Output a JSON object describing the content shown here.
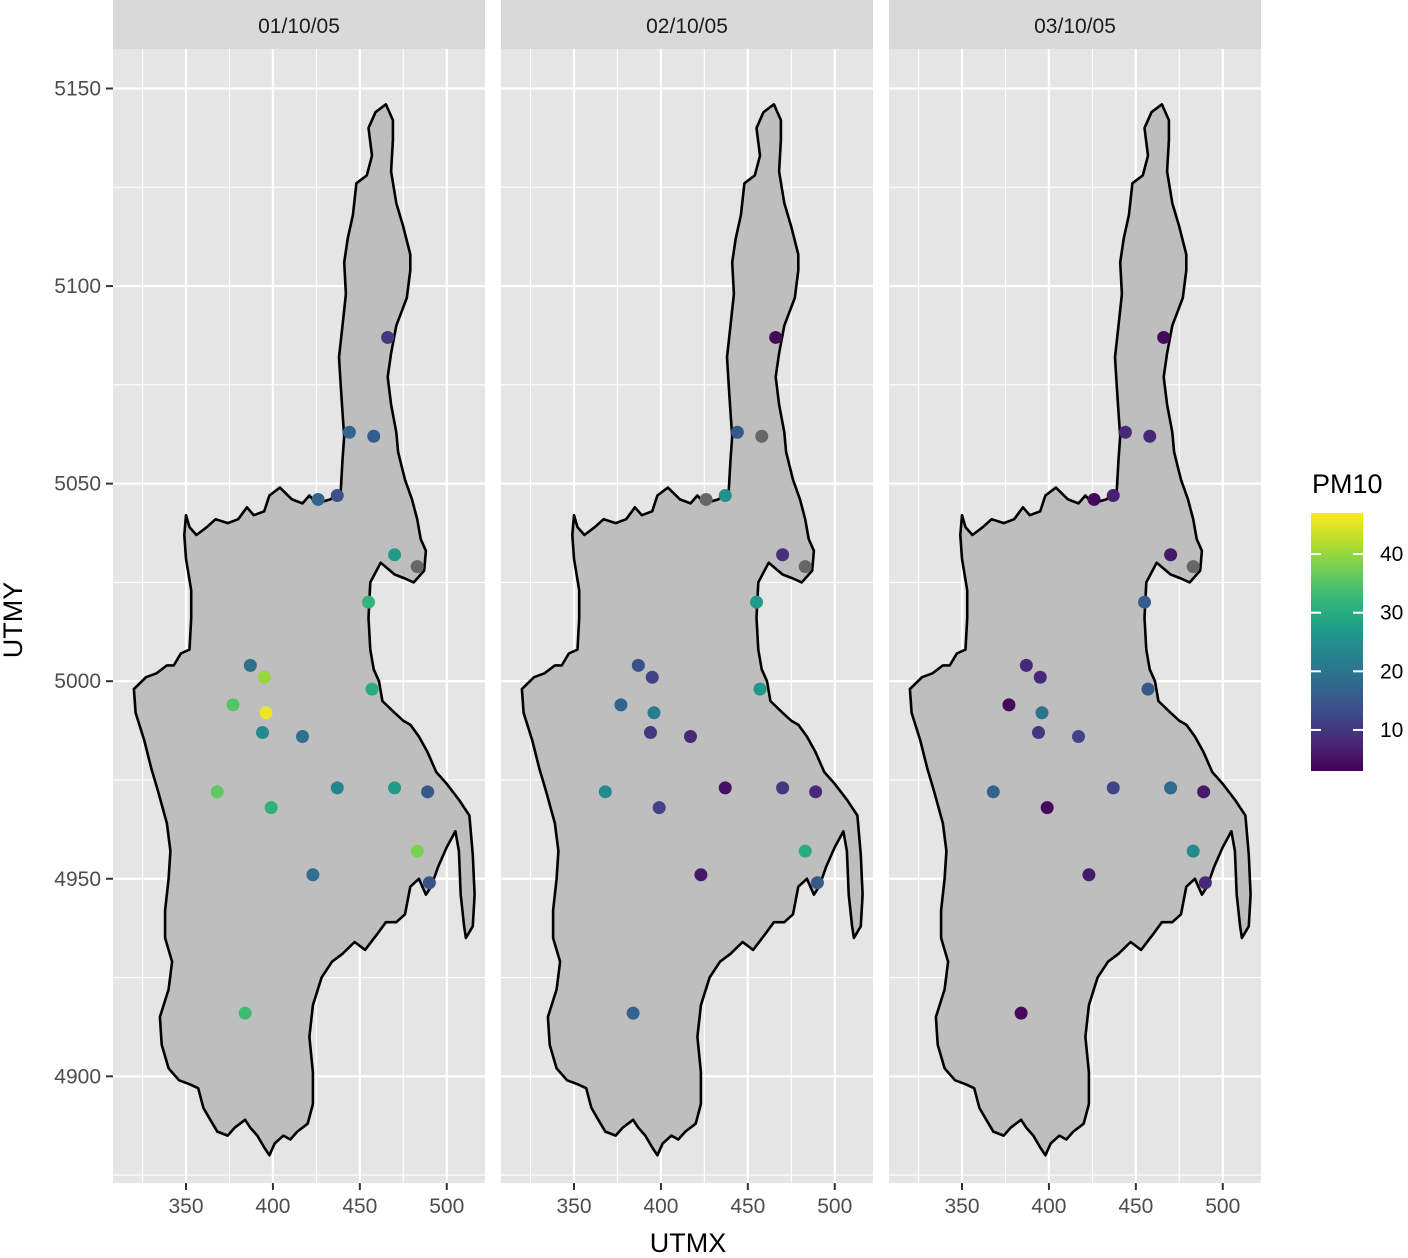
{
  "chart_data": {
    "type": "scatter",
    "facets": [
      "01/10/05",
      "02/10/05",
      "03/10/05"
    ],
    "xlabel": "UTMX",
    "ylabel": "UTMY",
    "xlim": [
      308,
      522
    ],
    "ylim": [
      4873,
      5160
    ],
    "x_ticks": [
      350,
      400,
      450,
      500
    ],
    "y_ticks": [
      4900,
      4950,
      5000,
      5050,
      5100,
      5150
    ],
    "legend": {
      "title": "PM10",
      "placement": "right",
      "range": [
        3,
        47
      ],
      "ticks": [
        10,
        20,
        30,
        40
      ],
      "colors": [
        "#440154",
        "#482878",
        "#3e4989",
        "#31688e",
        "#26828e",
        "#1f9e89",
        "#35b779",
        "#6ece58",
        "#b5de2b",
        "#fde725"
      ]
    },
    "na_color": "#666666",
    "region_color": "#bebebe",
    "stations": [
      {
        "x": 466,
        "y": 5087
      },
      {
        "x": 444,
        "y": 5063
      },
      {
        "x": 458,
        "y": 5062
      },
      {
        "x": 426,
        "y": 5046
      },
      {
        "x": 437,
        "y": 5047
      },
      {
        "x": 470,
        "y": 5032
      },
      {
        "x": 483,
        "y": 5029
      },
      {
        "x": 455,
        "y": 5020
      },
      {
        "x": 387,
        "y": 5004
      },
      {
        "x": 395,
        "y": 5001
      },
      {
        "x": 457,
        "y": 4998
      },
      {
        "x": 377,
        "y": 4994
      },
      {
        "x": 396,
        "y": 4992
      },
      {
        "x": 394,
        "y": 4987
      },
      {
        "x": 417,
        "y": 4986
      },
      {
        "x": 368,
        "y": 4972
      },
      {
        "x": 437,
        "y": 4973
      },
      {
        "x": 470,
        "y": 4973
      },
      {
        "x": 489,
        "y": 4972
      },
      {
        "x": 399,
        "y": 4968
      },
      {
        "x": 483,
        "y": 4957
      },
      {
        "x": 423,
        "y": 4951
      },
      {
        "x": 490,
        "y": 4949
      },
      {
        "x": 384,
        "y": 4916
      }
    ],
    "series": [
      {
        "name": "01/10/05",
        "values": [
          10,
          17,
          16,
          17,
          14,
          27,
          null,
          32,
          19,
          40,
          30,
          35,
          46,
          24,
          19,
          36,
          23,
          27,
          15,
          31,
          38,
          19,
          14,
          33
        ]
      },
      {
        "name": "02/10/05",
        "values": [
          4,
          15,
          null,
          null,
          25,
          9,
          null,
          27,
          14,
          12,
          26,
          17,
          22,
          10,
          8,
          24,
          5,
          10,
          8,
          12,
          30,
          6,
          15,
          17
        ]
      },
      {
        "name": "03/10/05",
        "values": [
          4,
          8,
          8,
          4,
          7,
          6,
          null,
          16,
          8,
          8,
          15,
          4,
          20,
          10,
          12,
          17,
          12,
          18,
          6,
          4,
          24,
          6,
          8,
          4
        ]
      }
    ]
  }
}
